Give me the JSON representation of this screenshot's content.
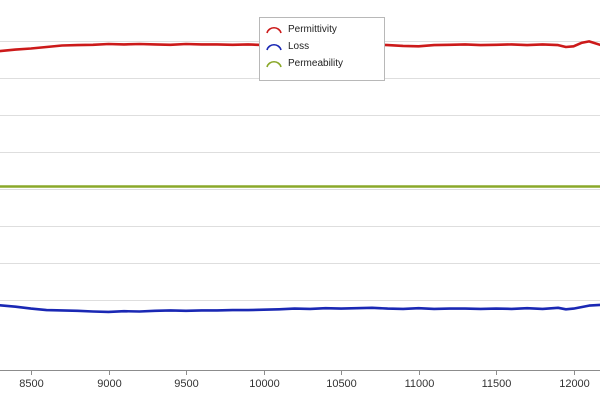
{
  "chart_data": {
    "type": "line",
    "xlabel": "",
    "ylabel": "",
    "xlim": [
      8300,
      12170
    ],
    "ylim": [
      0,
      100
    ],
    "x_ticks": [
      8500,
      9000,
      9500,
      10000,
      10500,
      11000,
      11500,
      12000
    ],
    "y_gridlines": [
      89,
      79,
      69,
      59,
      49,
      39,
      29,
      19
    ],
    "grid": "horizontal",
    "legend_position": "top-center",
    "series": [
      {
        "name": "Permittivity",
        "color": "#cc1a1a",
        "x": [
          8300,
          8400,
          8500,
          8600,
          8700,
          8800,
          8900,
          9000,
          9100,
          9200,
          9300,
          9400,
          9500,
          9600,
          9700,
          9800,
          9900,
          10000,
          10100,
          10200,
          10300,
          10400,
          10500,
          10600,
          10700,
          10800,
          10900,
          11000,
          11100,
          11200,
          11300,
          11400,
          11500,
          11600,
          11700,
          11800,
          11900,
          11950,
          12000,
          12050,
          12100,
          12170
        ],
        "y": [
          86.2,
          86.6,
          86.9,
          87.3,
          87.7,
          87.8,
          87.9,
          88.1,
          88.0,
          88.1,
          88.0,
          87.9,
          88.1,
          88.0,
          88.0,
          87.9,
          88.0,
          87.8,
          87.9,
          88.0,
          87.9,
          88.0,
          87.9,
          87.9,
          88.0,
          87.8,
          87.6,
          87.5,
          87.8,
          87.9,
          88.0,
          87.8,
          87.9,
          88.0,
          87.8,
          88.0,
          87.8,
          87.3,
          87.5,
          88.4,
          88.8,
          87.9
        ]
      },
      {
        "name": "Loss",
        "color": "#1a28b4",
        "x": [
          8300,
          8400,
          8500,
          8600,
          8700,
          8800,
          8900,
          9000,
          9100,
          9200,
          9300,
          9400,
          9500,
          9600,
          9700,
          9800,
          9900,
          10000,
          10100,
          10200,
          10300,
          10400,
          10500,
          10600,
          10700,
          10800,
          10900,
          11000,
          11100,
          11200,
          11300,
          11400,
          11500,
          11600,
          11700,
          11800,
          11900,
          11950,
          12000,
          12050,
          12100,
          12170
        ],
        "y": [
          17.5,
          17.1,
          16.6,
          16.2,
          16.1,
          16.0,
          15.8,
          15.7,
          15.9,
          15.8,
          16.0,
          16.1,
          16.0,
          16.1,
          16.1,
          16.2,
          16.2,
          16.3,
          16.4,
          16.6,
          16.5,
          16.7,
          16.6,
          16.7,
          16.8,
          16.6,
          16.5,
          16.7,
          16.5,
          16.6,
          16.6,
          16.5,
          16.6,
          16.5,
          16.7,
          16.5,
          16.8,
          16.4,
          16.6,
          17.0,
          17.4,
          17.6
        ]
      },
      {
        "name": "Permeability",
        "color": "#8aa82a",
        "x": [
          8300,
          12170
        ],
        "y": [
          49.6,
          49.6
        ]
      }
    ]
  }
}
